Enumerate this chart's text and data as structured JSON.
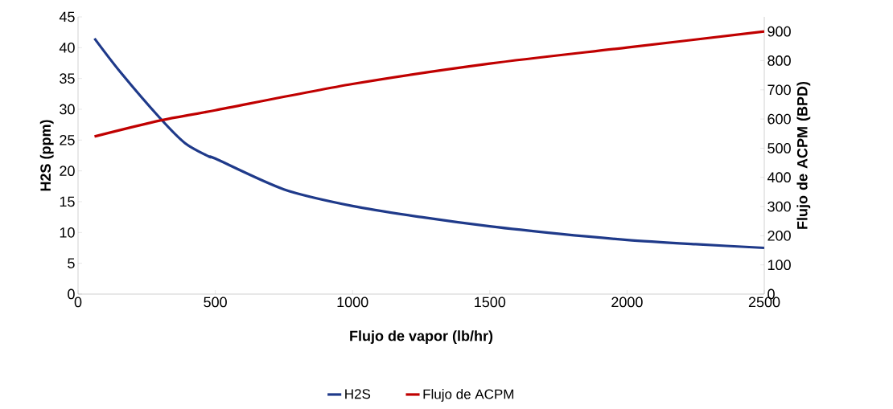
{
  "chart_data": {
    "type": "line",
    "xlabel": "Flujo de vapor (lb/hr)",
    "ylabel": "H2S (ppm)",
    "y2label": "Flujo de  ACPM (BPD)",
    "xlim": [
      0,
      2500
    ],
    "xticks": [
      0,
      500,
      1000,
      1500,
      2000,
      2500
    ],
    "ylim": [
      0,
      45
    ],
    "yticks": [
      0,
      5,
      10,
      15,
      20,
      25,
      30,
      35,
      40,
      45
    ],
    "y2lim": [
      0,
      950
    ],
    "y2ticks": [
      0,
      100,
      200,
      300,
      400,
      500,
      600,
      700,
      800,
      900
    ],
    "grid": false,
    "legend": "bottom",
    "marker": "none",
    "line_style": "solid",
    "series": [
      {
        "name": "H2S",
        "color": "#1f3a8a",
        "x": [
          60,
          155,
          300,
          390,
          478,
          500,
          750,
          1000,
          1250,
          1500,
          1750,
          2000,
          2250,
          2500
        ],
        "values": [
          41.5,
          36,
          28.5,
          24.5,
          22.3,
          22,
          17,
          14.3,
          12.5,
          11,
          9.8,
          8.8,
          8.1,
          7.5
        ]
      },
      {
        "name": "Flujo de ACPM",
        "color": "#c00000",
        "axis": "y2",
        "x": [
          60,
          300,
          500,
          1000,
          1500,
          2000,
          2500
        ],
        "values": [
          540,
          595,
          630,
          720,
          790,
          845,
          900
        ]
      }
    ]
  }
}
